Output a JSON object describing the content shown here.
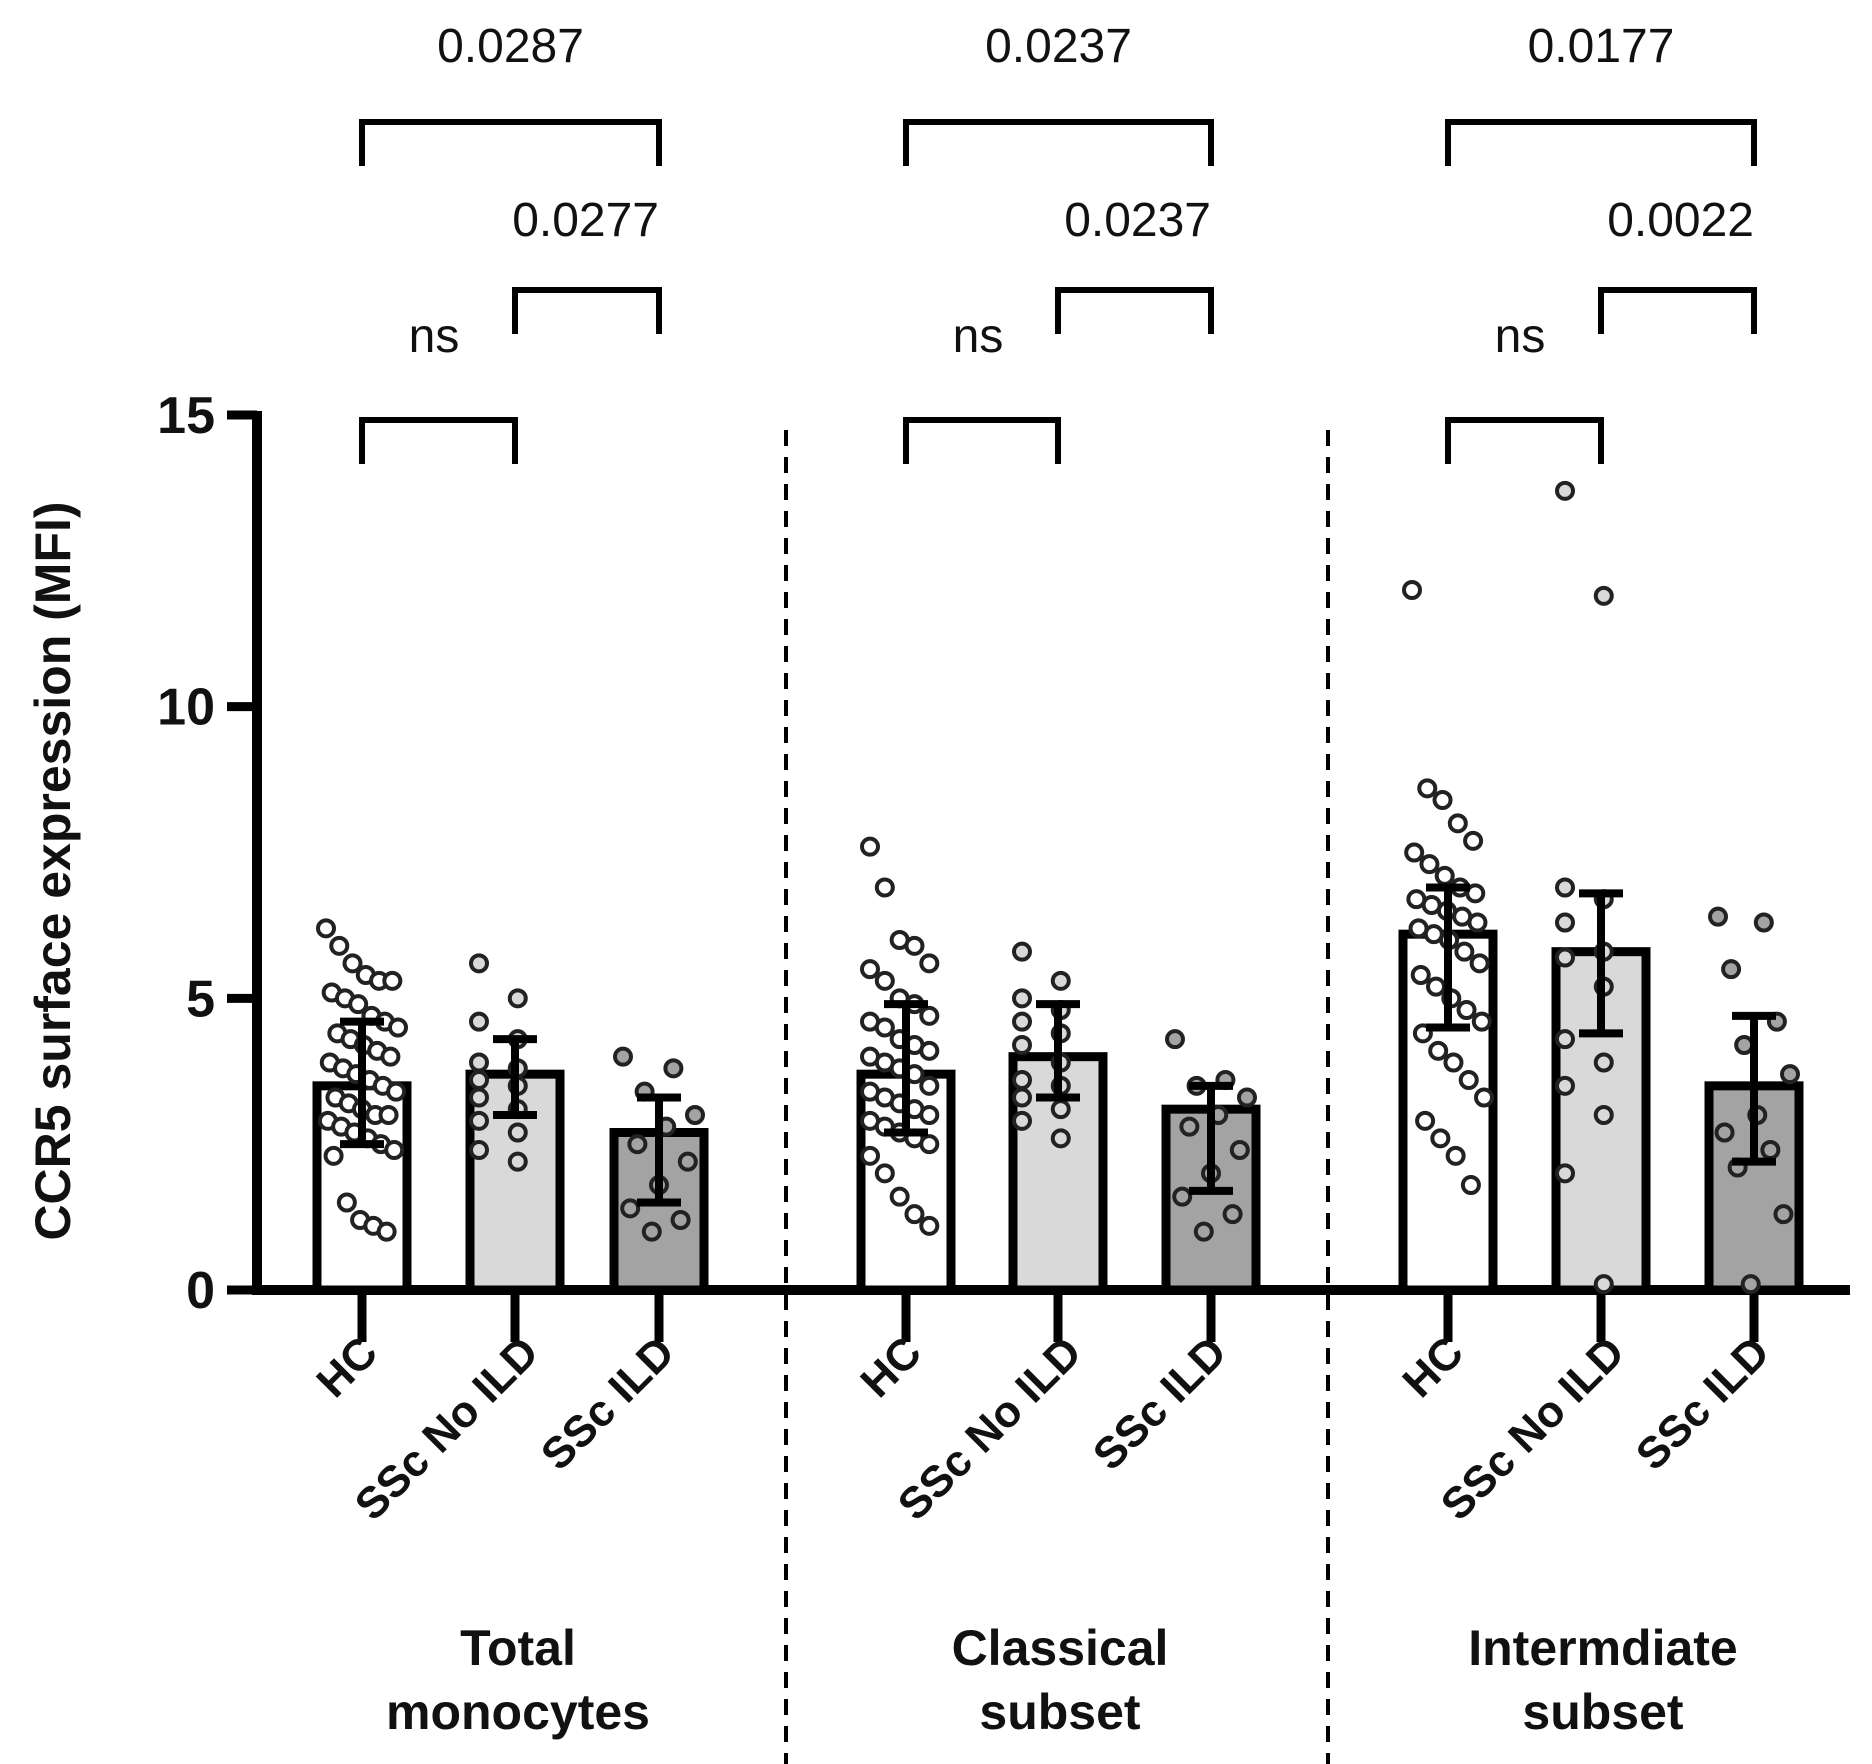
{
  "chart_data": {
    "type": "bar",
    "ylabel": "CCR5 surface expression (MFI)",
    "ylim": [
      0,
      15
    ],
    "yticks": [
      0,
      5,
      10,
      15
    ],
    "colors": {
      "HC": "#ffffff",
      "SSc No ILD": "#d9d9d9",
      "SSc ILD": "#a3a3a3",
      "axis": "#000000"
    },
    "groups": [
      {
        "label_lines": [
          "Total",
          "monocytes"
        ],
        "bars": [
          {
            "category": "HC",
            "mean": 3.5,
            "err_low": 2.5,
            "err_high": 4.6,
            "points": [
              6.2,
              5.9,
              5.6,
              5.4,
              5.3,
              5.3,
              5.1,
              5.0,
              4.9,
              4.7,
              4.6,
              4.5,
              4.4,
              4.3,
              4.2,
              4.1,
              4.0,
              3.9,
              3.8,
              3.7,
              3.6,
              3.5,
              3.4,
              3.3,
              3.2,
              3.1,
              3.0,
              3.0,
              2.9,
              2.8,
              2.7,
              2.6,
              2.5,
              2.4,
              2.3,
              1.5,
              1.2,
              1.1,
              1.0
            ]
          },
          {
            "category": "SSc No ILD",
            "mean": 3.7,
            "err_low": 3.0,
            "err_high": 4.3,
            "points": [
              5.6,
              5.0,
              4.6,
              4.3,
              3.9,
              3.8,
              3.6,
              3.5,
              3.3,
              3.1,
              2.9,
              2.7,
              2.4,
              2.2
            ]
          },
          {
            "category": "SSc ILD",
            "mean": 2.7,
            "err_low": 1.5,
            "err_high": 3.3,
            "points": [
              4.0,
              3.8,
              3.4,
              3.0,
              2.8,
              2.5,
              2.2,
              1.8,
              1.4,
              1.2,
              1.0
            ]
          }
        ],
        "comparisons": [
          {
            "from": 0,
            "to": 1,
            "label": "ns"
          },
          {
            "from": 1,
            "to": 2,
            "label": "0.0277"
          },
          {
            "from": 0,
            "to": 2,
            "label": "0.0287"
          }
        ]
      },
      {
        "label_lines": [
          "Classical",
          "subset"
        ],
        "bars": [
          {
            "category": "HC",
            "mean": 3.7,
            "err_low": 2.7,
            "err_high": 4.9,
            "points": [
              7.6,
              6.9,
              6.0,
              5.9,
              5.6,
              5.5,
              5.3,
              5.0,
              4.9,
              4.7,
              4.6,
              4.5,
              4.3,
              4.2,
              4.1,
              4.0,
              3.9,
              3.8,
              3.7,
              3.5,
              3.4,
              3.3,
              3.2,
              3.1,
              3.0,
              2.9,
              2.8,
              2.7,
              2.6,
              2.5,
              2.3,
              2.0,
              1.6,
              1.3,
              1.1
            ]
          },
          {
            "category": "SSc No ILD",
            "mean": 4.0,
            "err_low": 3.3,
            "err_high": 4.9,
            "points": [
              5.8,
              5.3,
              5.0,
              4.8,
              4.6,
              4.4,
              4.2,
              3.9,
              3.6,
              3.5,
              3.3,
              3.1,
              2.9,
              2.6
            ]
          },
          {
            "category": "SSc ILD",
            "mean": 3.1,
            "err_low": 1.7,
            "err_high": 3.5,
            "points": [
              4.3,
              3.6,
              3.5,
              3.3,
              3.0,
              2.8,
              2.4,
              2.0,
              1.6,
              1.3,
              1.0
            ]
          }
        ],
        "comparisons": [
          {
            "from": 0,
            "to": 1,
            "label": "ns"
          },
          {
            "from": 1,
            "to": 2,
            "label": "0.0237"
          },
          {
            "from": 0,
            "to": 2,
            "label": "0.0237"
          }
        ]
      },
      {
        "label_lines": [
          "Intermdiate",
          "subset"
        ],
        "bars": [
          {
            "category": "HC",
            "mean": 6.1,
            "err_low": 4.5,
            "err_high": 6.9,
            "points": [
              12.0,
              8.6,
              8.4,
              8.0,
              7.7,
              7.5,
              7.3,
              7.1,
              6.9,
              6.8,
              6.7,
              6.6,
              6.5,
              6.4,
              6.3,
              6.2,
              6.1,
              6.0,
              5.8,
              5.6,
              5.4,
              5.2,
              5.0,
              4.8,
              4.6,
              4.4,
              4.1,
              3.9,
              3.6,
              3.3,
              2.9,
              2.6,
              2.3,
              1.8
            ]
          },
          {
            "category": "SSc No ILD",
            "mean": 5.8,
            "err_low": 4.4,
            "err_high": 6.8,
            "points": [
              13.7,
              11.9,
              6.9,
              6.7,
              6.3,
              5.8,
              5.7,
              5.2,
              4.3,
              3.9,
              3.5,
              3.0,
              2.0,
              0.1
            ]
          },
          {
            "category": "SSc ILD",
            "mean": 3.5,
            "err_low": 2.2,
            "err_high": 4.7,
            "points": [
              6.4,
              6.3,
              5.5,
              4.6,
              4.2,
              3.7,
              3.0,
              2.7,
              2.4,
              2.1,
              1.3,
              0.1
            ]
          }
        ],
        "comparisons": [
          {
            "from": 0,
            "to": 1,
            "label": "ns"
          },
          {
            "from": 1,
            "to": 2,
            "label": "0.0022"
          },
          {
            "from": 0,
            "to": 2,
            "label": "0.0177"
          }
        ]
      }
    ]
  }
}
